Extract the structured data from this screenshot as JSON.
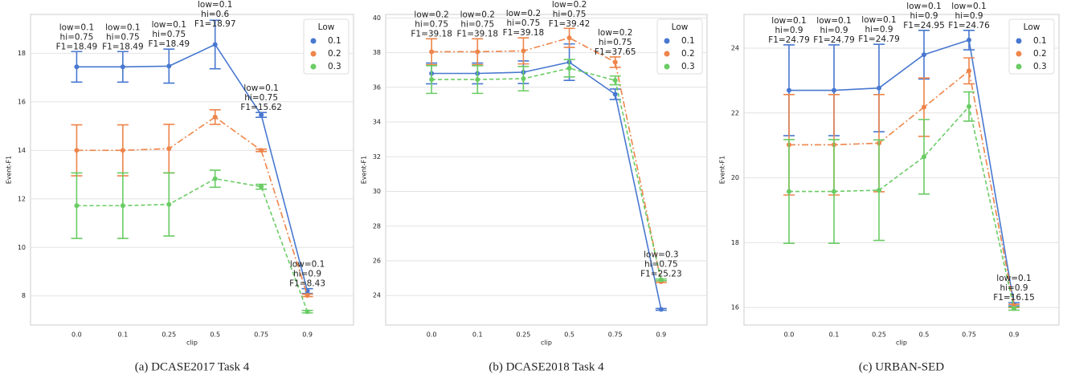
{
  "chart_data": [
    {
      "type": "line",
      "caption": "(a) DCASE2017 Task 4",
      "xlabel": "clip",
      "ylabel": "Event-F1",
      "legend_title": "Low",
      "legend": "upper right",
      "grid": true,
      "categories": [
        "0.0",
        "0.1",
        "0.25",
        "0.5",
        "0.75",
        "0.9"
      ],
      "ylim": [
        6.8,
        19.6
      ],
      "yticks": [
        8,
        10,
        12,
        14,
        16,
        18
      ],
      "series": [
        {
          "name": "0.1",
          "color": "#4878d0",
          "linestyle": "solid",
          "values": [
            17.44,
            17.44,
            17.47,
            18.36,
            15.46,
            8.2
          ],
          "errors": [
            0.63,
            0.63,
            0.7,
            1.0,
            0.1,
            0.1
          ]
        },
        {
          "name": "0.2",
          "color": "#ee854a",
          "linestyle": "dashdot",
          "values": [
            14.0,
            14.0,
            14.07,
            15.37,
            14.0,
            8.02
          ],
          "errors": [
            1.05,
            1.05,
            1.0,
            0.3,
            0.05,
            0.05
          ]
        },
        {
          "name": "0.3",
          "color": "#6acc64",
          "linestyle": "dashed",
          "values": [
            11.72,
            11.72,
            11.77,
            12.83,
            12.5,
            7.35
          ],
          "errors": [
            1.35,
            1.35,
            1.3,
            0.35,
            0.1,
            0.05
          ]
        }
      ],
      "annotations": [
        [
          "low=0.1",
          "hi=0.75",
          "F1=18.49"
        ],
        [
          "low=0.1",
          "hi=0.75",
          "F1=18.49"
        ],
        [
          "low=0.1",
          "hi=0.75",
          "F1=18.49"
        ],
        [
          "low=0.1",
          "hi=0.6",
          "F1=18.97"
        ],
        [
          "low=0.1",
          "hi=0.75",
          "F1=15.62"
        ],
        [
          "low=0.1",
          "hi=0.9",
          "F1=8.43"
        ]
      ]
    },
    {
      "type": "line",
      "caption": "(b) DCASE2018 Task 4",
      "xlabel": "clip",
      "ylabel": "Event-F1",
      "legend_title": "Low",
      "legend": "upper right",
      "grid": true,
      "categories": [
        "0.0",
        "0.1",
        "0.25",
        "0.5",
        "0.75",
        "0.9"
      ],
      "ylim": [
        22.3,
        40.2
      ],
      "yticks": [
        24,
        26,
        28,
        30,
        32,
        34,
        36,
        38,
        40
      ],
      "series": [
        {
          "name": "0.1",
          "color": "#4878d0",
          "linestyle": "solid",
          "values": [
            36.8,
            36.8,
            36.87,
            37.45,
            35.6,
            23.2
          ],
          "errors": [
            0.6,
            0.6,
            0.65,
            1.05,
            0.3,
            0.05
          ]
        },
        {
          "name": "0.2",
          "color": "#ee854a",
          "linestyle": "dashdot",
          "values": [
            38.05,
            38.05,
            38.1,
            38.85,
            37.45,
            24.8
          ],
          "errors": [
            0.75,
            0.75,
            0.75,
            0.55,
            0.3,
            0.05
          ]
        },
        {
          "name": "0.3",
          "color": "#6acc64",
          "linestyle": "dashed",
          "values": [
            36.45,
            36.45,
            36.5,
            37.1,
            36.4,
            24.9
          ],
          "errors": [
            0.8,
            0.8,
            0.7,
            0.5,
            0.25,
            0.05
          ]
        }
      ],
      "annotations": [
        [
          "low=0.2",
          "hi=0.75",
          "F1=39.18"
        ],
        [
          "low=0.2",
          "hi=0.75",
          "F1=39.18"
        ],
        [
          "low=0.2",
          "hi=0.75",
          "F1=39.18"
        ],
        [
          "low=0.2",
          "hi=0.75",
          "F1=39.42"
        ],
        [
          "low=0.2",
          "hi=0.75",
          "F1=37.65"
        ],
        [
          "low=0.3",
          "hi=0.75",
          "F1=25.23"
        ]
      ]
    },
    {
      "type": "line",
      "caption": "(c) URBAN-SED",
      "xlabel": "clip",
      "ylabel": "Event-F1",
      "legend_title": "Low",
      "legend": "upper right",
      "grid": true,
      "categories": [
        "0.0",
        "0.1",
        "0.25",
        "0.5",
        "0.75",
        "0.9"
      ],
      "ylim": [
        15.46,
        25.04
      ],
      "yticks": [
        16,
        18,
        20,
        22,
        24
      ],
      "series": [
        {
          "name": "0.1",
          "color": "#4878d0",
          "linestyle": "solid",
          "values": [
            22.7,
            22.7,
            22.77,
            23.8,
            24.25,
            16.1
          ],
          "errors": [
            1.4,
            1.4,
            1.35,
            0.75,
            0.3,
            0.05
          ]
        },
        {
          "name": "0.2",
          "color": "#ee854a",
          "linestyle": "dashdot",
          "values": [
            21.02,
            21.02,
            21.07,
            22.18,
            23.3,
            16.05
          ],
          "errors": [
            1.55,
            1.55,
            1.5,
            0.9,
            0.4,
            0.05
          ]
        },
        {
          "name": "0.3",
          "color": "#6acc64",
          "linestyle": "dashed",
          "values": [
            19.58,
            19.58,
            19.62,
            20.65,
            22.2,
            15.97
          ],
          "errors": [
            1.6,
            1.6,
            1.55,
            1.15,
            0.45,
            0.05
          ]
        }
      ],
      "annotations": [
        [
          "low=0.1",
          "hi=0.9",
          "F1=24.79"
        ],
        [
          "low=0.1",
          "hi=0.9",
          "F1=24.79"
        ],
        [
          "low=0.1",
          "hi=0.9",
          "F1=24.79"
        ],
        [
          "low=0.1",
          "hi=0.9",
          "F1=24.95"
        ],
        [
          "low=0.1",
          "hi=0.9",
          "F1=24.76"
        ],
        [
          "low=0.1",
          "hi=0.9",
          "F1=16.15"
        ]
      ]
    }
  ]
}
